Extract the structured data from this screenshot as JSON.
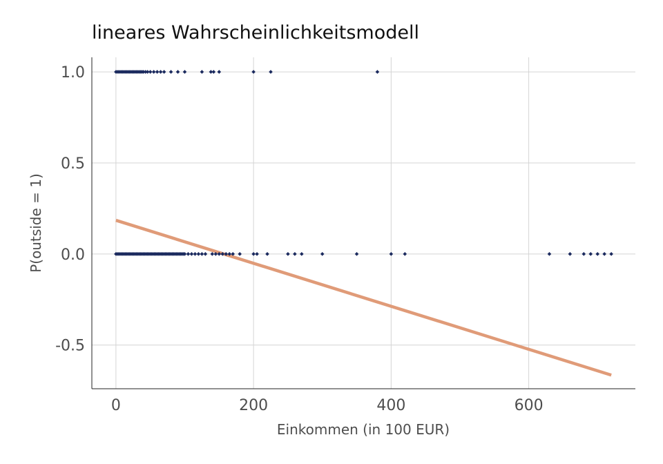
{
  "chart_data": {
    "type": "scatter",
    "title": "lineares Wahrscheinlichkeitsmodell",
    "xlabel": "Einkommen (in 100 EUR)",
    "ylabel": "P(outside = 1)",
    "xlim": [
      -35,
      755
    ],
    "ylim": [
      -0.74,
      1.08
    ],
    "x_ticks": [
      0,
      200,
      400,
      600
    ],
    "y_ticks": [
      -0.5,
      0.0,
      0.5,
      1.0
    ],
    "x_tick_labels": [
      "0",
      "200",
      "400",
      "600"
    ],
    "y_tick_labels": [
      "-0.5",
      "0.0",
      "0.5",
      "1.0"
    ],
    "grid": true,
    "series": [
      {
        "type": "scatter",
        "color": "#1b2a5e",
        "points": [
          {
            "x": 0,
            "y": 1
          },
          {
            "x": 2,
            "y": 1
          },
          {
            "x": 4,
            "y": 1
          },
          {
            "x": 6,
            "y": 1
          },
          {
            "x": 8,
            "y": 1
          },
          {
            "x": 10,
            "y": 1
          },
          {
            "x": 12,
            "y": 1
          },
          {
            "x": 14,
            "y": 1
          },
          {
            "x": 16,
            "y": 1
          },
          {
            "x": 18,
            "y": 1
          },
          {
            "x": 20,
            "y": 1
          },
          {
            "x": 22,
            "y": 1
          },
          {
            "x": 24,
            "y": 1
          },
          {
            "x": 26,
            "y": 1
          },
          {
            "x": 28,
            "y": 1
          },
          {
            "x": 30,
            "y": 1
          },
          {
            "x": 32,
            "y": 1
          },
          {
            "x": 34,
            "y": 1
          },
          {
            "x": 36,
            "y": 1
          },
          {
            "x": 38,
            "y": 1
          },
          {
            "x": 40,
            "y": 1
          },
          {
            "x": 43,
            "y": 1
          },
          {
            "x": 46,
            "y": 1
          },
          {
            "x": 50,
            "y": 1
          },
          {
            "x": 55,
            "y": 1
          },
          {
            "x": 60,
            "y": 1
          },
          {
            "x": 65,
            "y": 1
          },
          {
            "x": 70,
            "y": 1
          },
          {
            "x": 80,
            "y": 1
          },
          {
            "x": 90,
            "y": 1
          },
          {
            "x": 100,
            "y": 1
          },
          {
            "x": 125,
            "y": 1
          },
          {
            "x": 138,
            "y": 1
          },
          {
            "x": 142,
            "y": 1
          },
          {
            "x": 150,
            "y": 1
          },
          {
            "x": 200,
            "y": 1
          },
          {
            "x": 225,
            "y": 1
          },
          {
            "x": 380,
            "y": 1
          },
          {
            "x": 0,
            "y": 0
          },
          {
            "x": 2,
            "y": 0
          },
          {
            "x": 4,
            "y": 0
          },
          {
            "x": 6,
            "y": 0
          },
          {
            "x": 8,
            "y": 0
          },
          {
            "x": 10,
            "y": 0
          },
          {
            "x": 12,
            "y": 0
          },
          {
            "x": 14,
            "y": 0
          },
          {
            "x": 16,
            "y": 0
          },
          {
            "x": 18,
            "y": 0
          },
          {
            "x": 20,
            "y": 0
          },
          {
            "x": 22,
            "y": 0
          },
          {
            "x": 24,
            "y": 0
          },
          {
            "x": 26,
            "y": 0
          },
          {
            "x": 28,
            "y": 0
          },
          {
            "x": 30,
            "y": 0
          },
          {
            "x": 32,
            "y": 0
          },
          {
            "x": 34,
            "y": 0
          },
          {
            "x": 36,
            "y": 0
          },
          {
            "x": 38,
            "y": 0
          },
          {
            "x": 40,
            "y": 0
          },
          {
            "x": 42,
            "y": 0
          },
          {
            "x": 44,
            "y": 0
          },
          {
            "x": 46,
            "y": 0
          },
          {
            "x": 48,
            "y": 0
          },
          {
            "x": 50,
            "y": 0
          },
          {
            "x": 52,
            "y": 0
          },
          {
            "x": 54,
            "y": 0
          },
          {
            "x": 56,
            "y": 0
          },
          {
            "x": 58,
            "y": 0
          },
          {
            "x": 60,
            "y": 0
          },
          {
            "x": 62,
            "y": 0
          },
          {
            "x": 64,
            "y": 0
          },
          {
            "x": 66,
            "y": 0
          },
          {
            "x": 68,
            "y": 0
          },
          {
            "x": 70,
            "y": 0
          },
          {
            "x": 72,
            "y": 0
          },
          {
            "x": 74,
            "y": 0
          },
          {
            "x": 76,
            "y": 0
          },
          {
            "x": 78,
            "y": 0
          },
          {
            "x": 80,
            "y": 0
          },
          {
            "x": 82,
            "y": 0
          },
          {
            "x": 84,
            "y": 0
          },
          {
            "x": 86,
            "y": 0
          },
          {
            "x": 88,
            "y": 0
          },
          {
            "x": 90,
            "y": 0
          },
          {
            "x": 92,
            "y": 0
          },
          {
            "x": 94,
            "y": 0
          },
          {
            "x": 96,
            "y": 0
          },
          {
            "x": 98,
            "y": 0
          },
          {
            "x": 100,
            "y": 0
          },
          {
            "x": 105,
            "y": 0
          },
          {
            "x": 110,
            "y": 0
          },
          {
            "x": 115,
            "y": 0
          },
          {
            "x": 120,
            "y": 0
          },
          {
            "x": 125,
            "y": 0
          },
          {
            "x": 130,
            "y": 0
          },
          {
            "x": 140,
            "y": 0
          },
          {
            "x": 145,
            "y": 0
          },
          {
            "x": 150,
            "y": 0
          },
          {
            "x": 155,
            "y": 0
          },
          {
            "x": 160,
            "y": 0
          },
          {
            "x": 165,
            "y": 0
          },
          {
            "x": 170,
            "y": 0
          },
          {
            "x": 180,
            "y": 0
          },
          {
            "x": 200,
            "y": 0
          },
          {
            "x": 205,
            "y": 0
          },
          {
            "x": 220,
            "y": 0
          },
          {
            "x": 250,
            "y": 0
          },
          {
            "x": 260,
            "y": 0
          },
          {
            "x": 270,
            "y": 0
          },
          {
            "x": 300,
            "y": 0
          },
          {
            "x": 350,
            "y": 0
          },
          {
            "x": 400,
            "y": 0
          },
          {
            "x": 420,
            "y": 0
          },
          {
            "x": 630,
            "y": 0
          },
          {
            "x": 660,
            "y": 0
          },
          {
            "x": 680,
            "y": 0
          },
          {
            "x": 690,
            "y": 0
          },
          {
            "x": 700,
            "y": 0
          },
          {
            "x": 710,
            "y": 0
          },
          {
            "x": 720,
            "y": 0
          }
        ]
      },
      {
        "type": "line",
        "color": "#e09b78",
        "points": [
          {
            "x": 0,
            "y": 0.185
          },
          {
            "x": 720,
            "y": -0.665
          }
        ]
      }
    ]
  }
}
